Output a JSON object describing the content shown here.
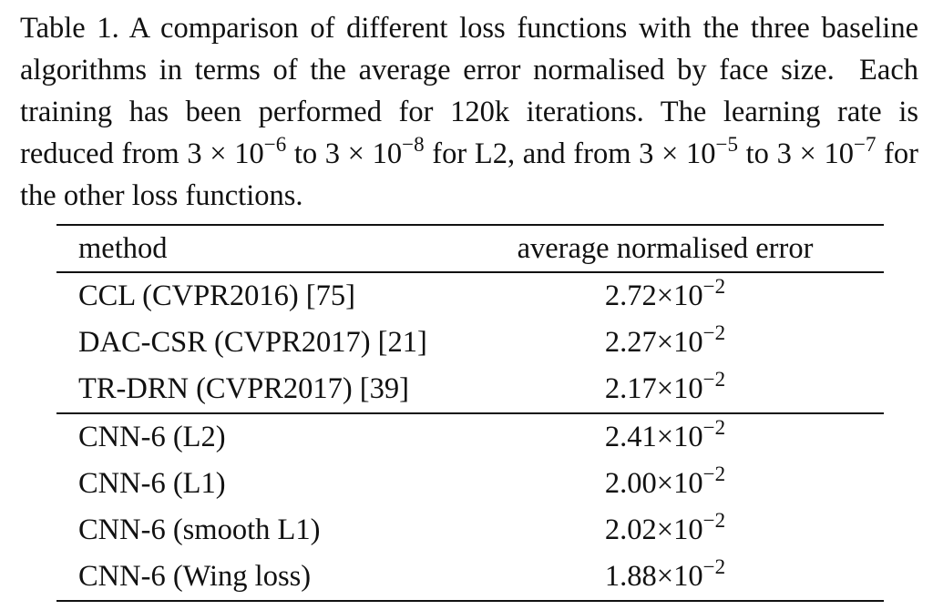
{
  "caption": {
    "parts": [
      {
        "text": "Table 1. A comparison of different loss functions with the three baseline algorithms in terms of the average error normalised by face size.  Each training has been performed for 120k iterations. The learning rate is reduced from 3 × 10"
      },
      {
        "sup": "−6"
      },
      {
        "text": " to 3 × 10"
      },
      {
        "sup": "−8"
      },
      {
        "text": " for L2, and from 3 × 10"
      },
      {
        "sup": "−5"
      },
      {
        "text": " to 3 × 10"
      },
      {
        "sup": "−7"
      },
      {
        "text": " for the other loss functions."
      }
    ]
  },
  "table": {
    "header": [
      "method",
      "average normalised error"
    ],
    "groups": [
      [
        {
          "method": "CCL (CVPR2016) [75]",
          "base": "2.72×10",
          "exp": "−2"
        },
        {
          "method": "DAC-CSR (CVPR2017) [21]",
          "base": "2.27×10",
          "exp": "−2"
        },
        {
          "method": "TR-DRN (CVPR2017) [39]",
          "base": "2.17×10",
          "exp": "−2"
        }
      ],
      [
        {
          "method": "CNN-6 (L2)",
          "base": "2.41×10",
          "exp": "−2"
        },
        {
          "method": "CNN-6 (L1)",
          "base": "2.00×10",
          "exp": "−2"
        },
        {
          "method": "CNN-6 (smooth L1)",
          "base": "2.02×10",
          "exp": "−2"
        },
        {
          "method": "CNN-6 (Wing loss)",
          "base": "1.88×10",
          "exp": "−2"
        }
      ]
    ]
  }
}
